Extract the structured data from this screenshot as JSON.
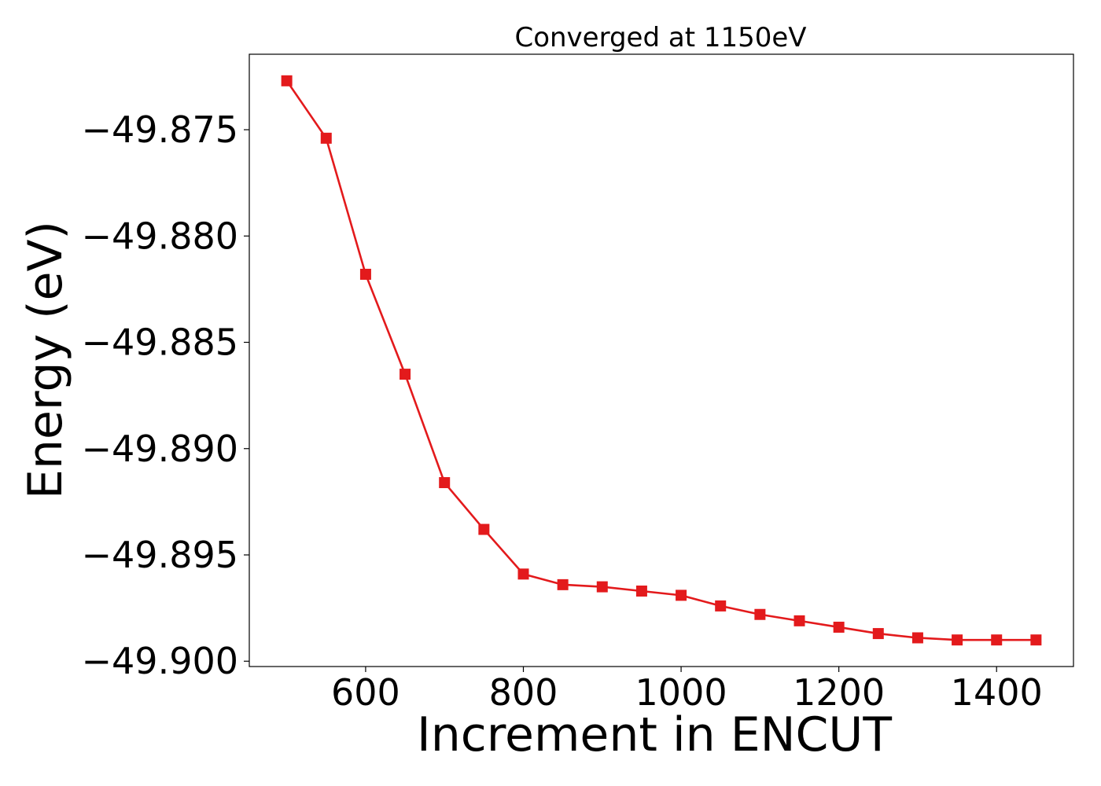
{
  "chart_data": {
    "type": "line",
    "title": "Converged at 1150eV",
    "xlabel": "Increment in ENCUT",
    "ylabel": "Energy (eV)",
    "xlim": [
      452.5,
      1497.5
    ],
    "ylim": [
      -49.90025,
      -49.87145
    ],
    "xticks": [
      600,
      800,
      1000,
      1200,
      1400
    ],
    "xtick_labels": [
      "600",
      "800",
      "1000",
      "1200",
      "1400"
    ],
    "yticks": [
      -49.875,
      -49.88,
      -49.885,
      -49.89,
      -49.895,
      -49.9
    ],
    "ytick_labels": [
      "−49.875",
      "−49.880",
      "−49.885",
      "−49.890",
      "−49.895",
      "−49.900"
    ],
    "grid": false,
    "series": [
      {
        "color": "#e31a1c",
        "marker": "square",
        "x": [
          500,
          550,
          600,
          650,
          700,
          750,
          800,
          850,
          900,
          950,
          1000,
          1050,
          1100,
          1150,
          1200,
          1250,
          1300,
          1350,
          1400,
          1450
        ],
        "y": [
          -49.8727,
          -49.8754,
          -49.8818,
          -49.8865,
          -49.8916,
          -49.8938,
          -49.8959,
          -49.8964,
          -49.8965,
          -49.8967,
          -49.8969,
          -49.8974,
          -49.8978,
          -49.8981,
          -49.8984,
          -49.8987,
          -49.8989,
          -49.899,
          -49.899,
          -49.899
        ]
      }
    ]
  }
}
